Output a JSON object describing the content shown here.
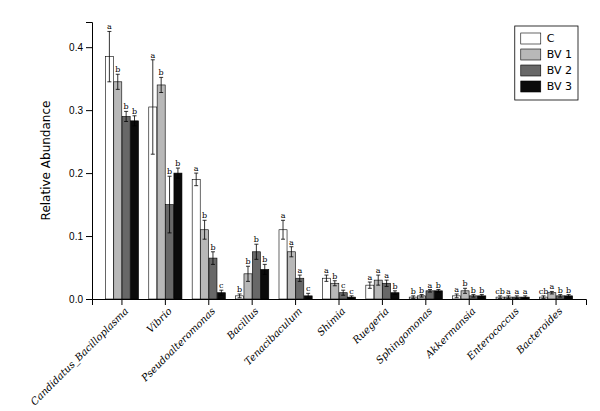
{
  "chart_data": {
    "type": "bar",
    "ylabel": "Relative Abundance",
    "categories": [
      "Candidatus_Bacilloplasma",
      "Vibrio",
      "Pseudoalteromonas",
      "Bacillus",
      "Tenacibaculum",
      "Shimia",
      "Ruegeria",
      "Sphingomonas",
      "Akkermansia",
      "Enterococcus",
      "Bacteroides"
    ],
    "series": [
      {
        "name": "C",
        "color": "#ffffff",
        "values": [
          0.385,
          0.305,
          0.19,
          0.005,
          0.11,
          0.033,
          0.022,
          0.003,
          0.005,
          0.003,
          0.003
        ],
        "errors": [
          0.04,
          0.075,
          0.01,
          0.003,
          0.015,
          0.005,
          0.005,
          0.002,
          0.003,
          0.002,
          0.002
        ],
        "annotations": [
          "a",
          "a",
          "a",
          "b",
          "a",
          "a",
          "a",
          "b",
          "a",
          "cb",
          "cb"
        ]
      },
      {
        "name": "BV 1",
        "color": "#b8b8b8",
        "values": [
          0.345,
          0.34,
          0.11,
          0.04,
          0.075,
          0.025,
          0.03,
          0.005,
          0.013,
          0.003,
          0.01
        ],
        "errors": [
          0.012,
          0.012,
          0.015,
          0.012,
          0.008,
          0.004,
          0.008,
          0.002,
          0.004,
          0.002,
          0.002
        ],
        "annotations": [
          "b",
          "b",
          "b",
          "b",
          "a",
          "b",
          "a",
          "b",
          "b",
          "a",
          "a"
        ]
      },
      {
        "name": "BV 2",
        "color": "#686868",
        "values": [
          0.29,
          0.15,
          0.065,
          0.075,
          0.033,
          0.01,
          0.025,
          0.013,
          0.005,
          0.003,
          0.005
        ],
        "errors": [
          0.008,
          0.045,
          0.01,
          0.012,
          0.005,
          0.004,
          0.005,
          0.002,
          0.002,
          0.002,
          0.002
        ],
        "annotations": [
          "b",
          "b",
          "b",
          "b",
          "a",
          "c",
          "a",
          "a",
          "b",
          "a",
          "b"
        ]
      },
      {
        "name": "BV 3",
        "color": "#0a0a0a",
        "values": [
          0.283,
          0.2,
          0.01,
          0.047,
          0.005,
          0.003,
          0.01,
          0.013,
          0.005,
          0.003,
          0.005
        ],
        "errors": [
          0.008,
          0.008,
          0.004,
          0.008,
          0.004,
          0.002,
          0.003,
          0.002,
          0.002,
          0.002,
          0.002
        ],
        "annotations": [
          "b",
          "b",
          "c",
          "b",
          "c",
          "c",
          "b",
          "b",
          "b",
          "a",
          "b"
        ]
      }
    ],
    "ylim": [
      0,
      0.44
    ],
    "yticks": [
      {
        "value": 0.0,
        "label": "0.0"
      },
      0.1,
      0.2,
      0.3,
      0.4
    ],
    "legend": "upper right",
    "grid": false
  }
}
